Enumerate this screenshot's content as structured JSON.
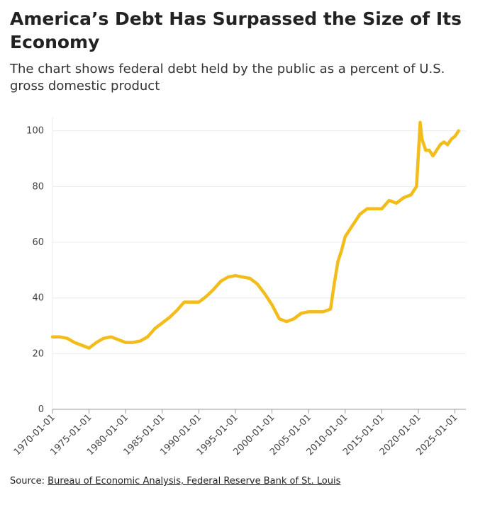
{
  "header": {
    "title": "America’s Debt Has Surpassed the Size of Its Economy",
    "subtitle": "The chart shows federal debt held by the public as a percent of U.S. gross domestic product"
  },
  "footer": {
    "source_label": "Source:",
    "source_link": "Bureau of Economic Analysis, Federal Reserve Bank of St. Louis"
  },
  "colors": {
    "line": "#f2bd1b",
    "grid": "#ececec",
    "axis": "#999999"
  },
  "chart_data": {
    "type": "line",
    "xlabel": "",
    "ylabel": "",
    "xlim": [
      "1970-01-01",
      "2026-07-01"
    ],
    "ylim": [
      0,
      105
    ],
    "yticks": [
      0,
      20,
      40,
      60,
      80,
      100
    ],
    "xticks": [
      "1970-01-01",
      "1975-01-01",
      "1980-01-01",
      "1985-01-01",
      "1990-01-01",
      "1995-01-01",
      "2000-01-01",
      "2005-01-01",
      "2010-01-01",
      "2015-01-01",
      "2020-01-01",
      "2025-01-01"
    ],
    "grid": true,
    "series": [
      {
        "x": [
          "1970-01-01",
          "1971-01-01",
          "1972-01-01",
          "1973-01-01",
          "1974-01-01",
          "1975-01-01",
          "1976-01-01",
          "1977-01-01",
          "1978-01-01",
          "1979-01-01",
          "1980-01-01",
          "1981-01-01",
          "1982-01-01",
          "1983-01-01",
          "1984-01-01",
          "1985-01-01",
          "1986-01-01",
          "1987-01-01",
          "1988-01-01",
          "1989-01-01",
          "1990-01-01",
          "1991-01-01",
          "1992-01-01",
          "1993-01-01",
          "1994-01-01",
          "1995-01-01",
          "1996-01-01",
          "1997-01-01",
          "1998-01-01",
          "1999-01-01",
          "2000-01-01",
          "2001-01-01",
          "2002-01-01",
          "2003-01-01",
          "2004-01-01",
          "2005-01-01",
          "2006-01-01",
          "2007-01-01",
          "2008-01-01",
          "2008-07-01",
          "2009-01-01",
          "2009-07-01",
          "2010-01-01",
          "2011-01-01",
          "2012-01-01",
          "2013-01-01",
          "2014-01-01",
          "2015-01-01",
          "2016-01-01",
          "2017-01-01",
          "2018-01-01",
          "2019-01-01",
          "2019-10-01",
          "2020-04-01",
          "2020-07-01",
          "2021-01-01",
          "2021-07-01",
          "2022-01-01",
          "2022-07-01",
          "2023-01-01",
          "2023-07-01",
          "2024-01-01",
          "2024-07-01",
          "2025-01-01",
          "2025-07-01"
        ],
        "y": [
          26,
          26,
          25.5,
          24,
          23,
          22,
          24,
          25.5,
          26,
          25,
          24,
          24,
          24.5,
          26,
          29,
          31,
          33,
          35.5,
          38.5,
          38.5,
          38.5,
          40.5,
          43,
          46,
          47.5,
          48,
          47.5,
          47,
          45,
          41.5,
          37.5,
          32.5,
          31.5,
          32.5,
          34.5,
          35,
          35,
          35,
          36,
          45,
          53,
          57,
          62,
          66,
          70,
          72,
          72,
          72,
          75,
          74,
          76,
          77,
          80,
          103,
          97,
          93,
          93,
          91,
          93,
          95,
          96,
          95,
          97,
          98,
          100
        ]
      }
    ]
  }
}
